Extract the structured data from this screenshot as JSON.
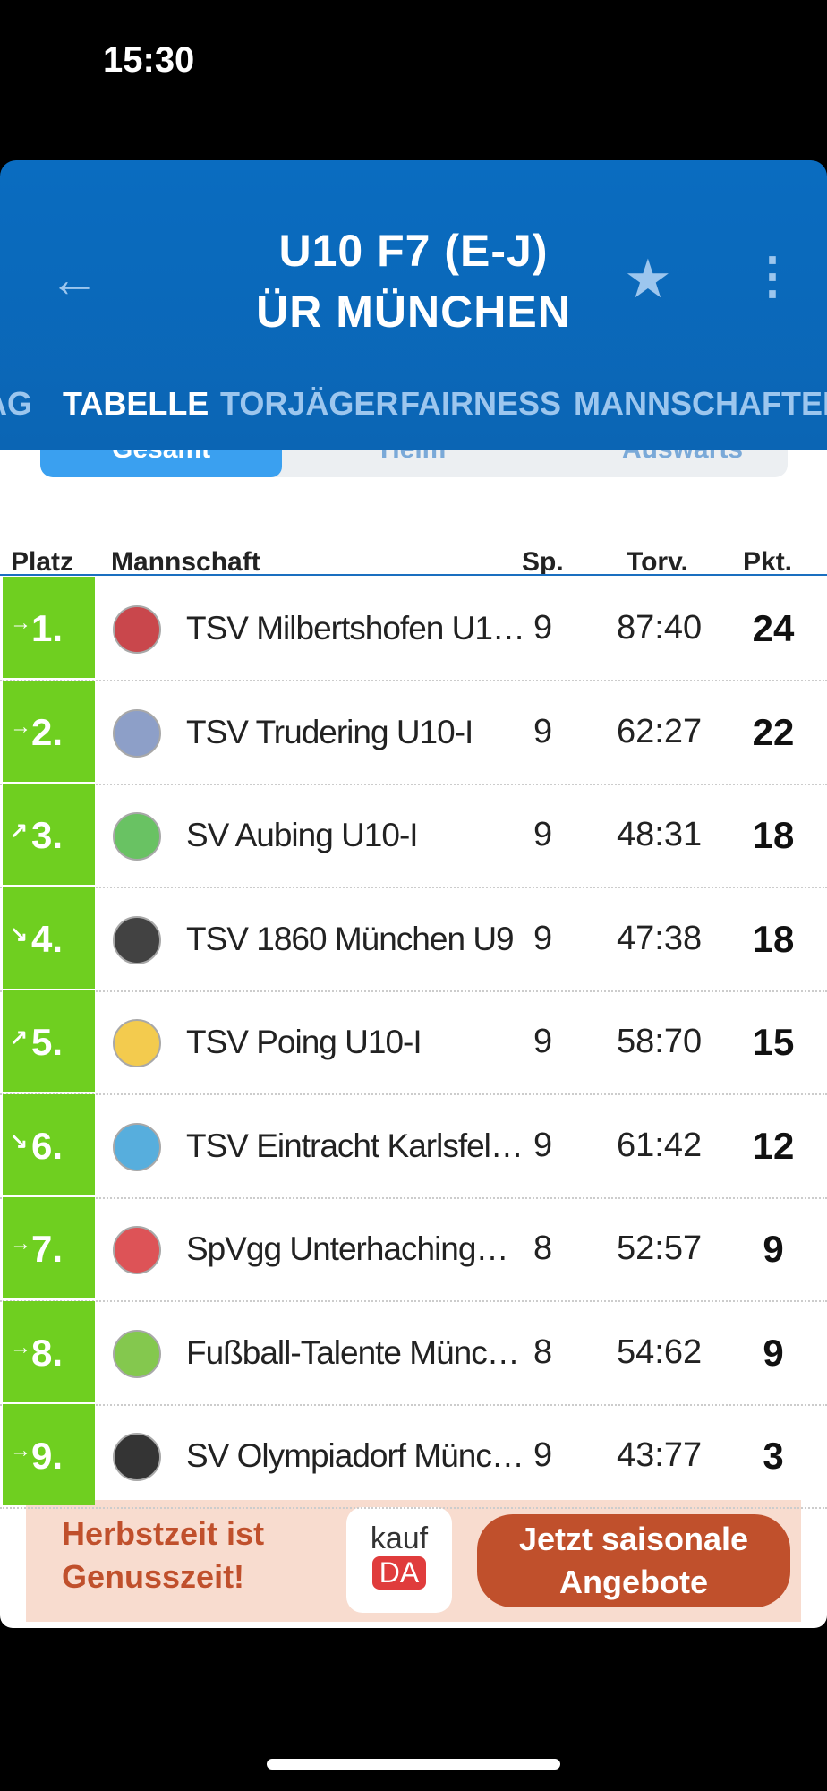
{
  "status": {
    "time": "15:30"
  },
  "header": {
    "title_line1": "U10 F7 (E-J)",
    "title_line2": "ÜR MÜNCHEN"
  },
  "tabs": [
    "AG",
    "TABELLE",
    "TORJÄGER",
    "FAIRNESS",
    "MANNSCHAFTEN"
  ],
  "segments": [
    "Gesamt",
    "Heim",
    "Auswärts"
  ],
  "table": {
    "columns": [
      "Platz",
      "Mannschaft",
      "Sp.",
      "Torv.",
      "Pkt."
    ],
    "rows": [
      [
        "→",
        "1.",
        "TSV Milbertshofen U1…",
        "9",
        "87:40",
        "24"
      ],
      [
        "→",
        "2.",
        "TSV Trudering U10-I",
        "9",
        "62:27",
        "22"
      ],
      [
        "↗",
        "3.",
        "SV Aubing U10-I",
        "9",
        "48:31",
        "18"
      ],
      [
        "↘",
        "4.",
        "TSV 1860 München U9",
        "9",
        "47:38",
        "18"
      ],
      [
        "↗",
        "5.",
        "TSV Poing U10-I",
        "9",
        "58:70",
        "15"
      ],
      [
        "↘",
        "6.",
        "TSV Eintracht Karlsfel…",
        "9",
        "61:42",
        "12"
      ],
      [
        "→",
        "7.",
        "SpVgg Unterhaching…",
        "8",
        "52:57",
        "9"
      ],
      [
        "→",
        "8.",
        "Fußball-Talente Münc…",
        "8",
        "54:62",
        "9"
      ],
      [
        "→",
        "9.",
        "SV Olympiadorf Münc…",
        "9",
        "43:77",
        "3"
      ]
    ]
  },
  "ad": {
    "headline": "Herbstzeit ist Genusszeit!",
    "brand_top": "kauf",
    "brand_bottom": "DA",
    "cta": "Jetzt saisonale Angebote"
  }
}
